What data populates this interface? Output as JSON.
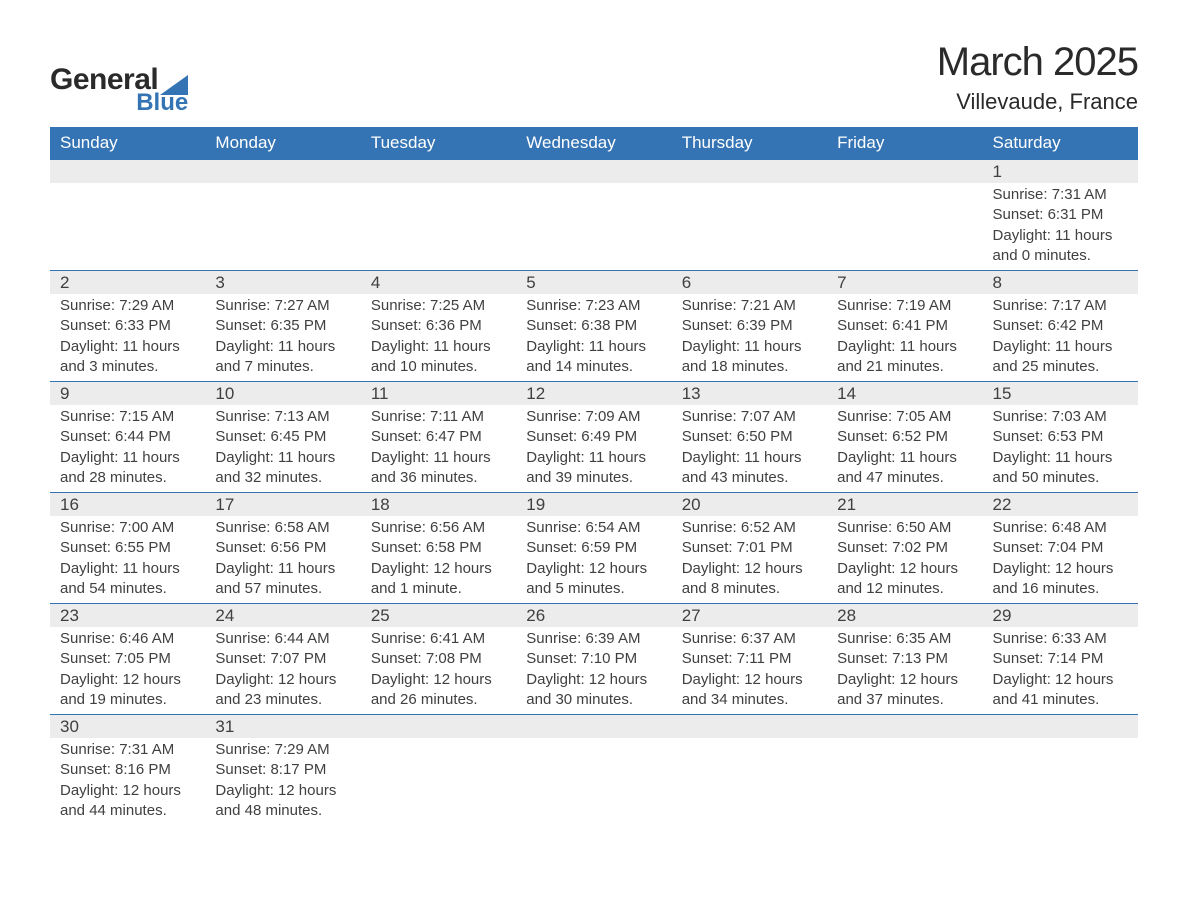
{
  "logo": {
    "text1": "General",
    "text2": "Blue",
    "tri_color": "#3474b4"
  },
  "title": {
    "month": "March 2025",
    "location": "Villevaude, France"
  },
  "colors": {
    "header_bg": "#3474b4",
    "header_text": "#ffffff",
    "daynum_bg": "#ececec",
    "content_bg": "#ffffff",
    "border": "#3474b4",
    "text": "#404040"
  },
  "fonts": {
    "title_pt": 40,
    "location_pt": 22,
    "header_pt": 17,
    "body_pt": 15
  },
  "weekdays": [
    "Sunday",
    "Monday",
    "Tuesday",
    "Wednesday",
    "Thursday",
    "Friday",
    "Saturday"
  ],
  "weeks": [
    [
      null,
      null,
      null,
      null,
      null,
      null,
      {
        "n": "1",
        "sr": "Sunrise: 7:31 AM",
        "ss": "Sunset: 6:31 PM",
        "d1": "Daylight: 11 hours",
        "d2": "and 0 minutes."
      }
    ],
    [
      {
        "n": "2",
        "sr": "Sunrise: 7:29 AM",
        "ss": "Sunset: 6:33 PM",
        "d1": "Daylight: 11 hours",
        "d2": "and 3 minutes."
      },
      {
        "n": "3",
        "sr": "Sunrise: 7:27 AM",
        "ss": "Sunset: 6:35 PM",
        "d1": "Daylight: 11 hours",
        "d2": "and 7 minutes."
      },
      {
        "n": "4",
        "sr": "Sunrise: 7:25 AM",
        "ss": "Sunset: 6:36 PM",
        "d1": "Daylight: 11 hours",
        "d2": "and 10 minutes."
      },
      {
        "n": "5",
        "sr": "Sunrise: 7:23 AM",
        "ss": "Sunset: 6:38 PM",
        "d1": "Daylight: 11 hours",
        "d2": "and 14 minutes."
      },
      {
        "n": "6",
        "sr": "Sunrise: 7:21 AM",
        "ss": "Sunset: 6:39 PM",
        "d1": "Daylight: 11 hours",
        "d2": "and 18 minutes."
      },
      {
        "n": "7",
        "sr": "Sunrise: 7:19 AM",
        "ss": "Sunset: 6:41 PM",
        "d1": "Daylight: 11 hours",
        "d2": "and 21 minutes."
      },
      {
        "n": "8",
        "sr": "Sunrise: 7:17 AM",
        "ss": "Sunset: 6:42 PM",
        "d1": "Daylight: 11 hours",
        "d2": "and 25 minutes."
      }
    ],
    [
      {
        "n": "9",
        "sr": "Sunrise: 7:15 AM",
        "ss": "Sunset: 6:44 PM",
        "d1": "Daylight: 11 hours",
        "d2": "and 28 minutes."
      },
      {
        "n": "10",
        "sr": "Sunrise: 7:13 AM",
        "ss": "Sunset: 6:45 PM",
        "d1": "Daylight: 11 hours",
        "d2": "and 32 minutes."
      },
      {
        "n": "11",
        "sr": "Sunrise: 7:11 AM",
        "ss": "Sunset: 6:47 PM",
        "d1": "Daylight: 11 hours",
        "d2": "and 36 minutes."
      },
      {
        "n": "12",
        "sr": "Sunrise: 7:09 AM",
        "ss": "Sunset: 6:49 PM",
        "d1": "Daylight: 11 hours",
        "d2": "and 39 minutes."
      },
      {
        "n": "13",
        "sr": "Sunrise: 7:07 AM",
        "ss": "Sunset: 6:50 PM",
        "d1": "Daylight: 11 hours",
        "d2": "and 43 minutes."
      },
      {
        "n": "14",
        "sr": "Sunrise: 7:05 AM",
        "ss": "Sunset: 6:52 PM",
        "d1": "Daylight: 11 hours",
        "d2": "and 47 minutes."
      },
      {
        "n": "15",
        "sr": "Sunrise: 7:03 AM",
        "ss": "Sunset: 6:53 PM",
        "d1": "Daylight: 11 hours",
        "d2": "and 50 minutes."
      }
    ],
    [
      {
        "n": "16",
        "sr": "Sunrise: 7:00 AM",
        "ss": "Sunset: 6:55 PM",
        "d1": "Daylight: 11 hours",
        "d2": "and 54 minutes."
      },
      {
        "n": "17",
        "sr": "Sunrise: 6:58 AM",
        "ss": "Sunset: 6:56 PM",
        "d1": "Daylight: 11 hours",
        "d2": "and 57 minutes."
      },
      {
        "n": "18",
        "sr": "Sunrise: 6:56 AM",
        "ss": "Sunset: 6:58 PM",
        "d1": "Daylight: 12 hours",
        "d2": "and 1 minute."
      },
      {
        "n": "19",
        "sr": "Sunrise: 6:54 AM",
        "ss": "Sunset: 6:59 PM",
        "d1": "Daylight: 12 hours",
        "d2": "and 5 minutes."
      },
      {
        "n": "20",
        "sr": "Sunrise: 6:52 AM",
        "ss": "Sunset: 7:01 PM",
        "d1": "Daylight: 12 hours",
        "d2": "and 8 minutes."
      },
      {
        "n": "21",
        "sr": "Sunrise: 6:50 AM",
        "ss": "Sunset: 7:02 PM",
        "d1": "Daylight: 12 hours",
        "d2": "and 12 minutes."
      },
      {
        "n": "22",
        "sr": "Sunrise: 6:48 AM",
        "ss": "Sunset: 7:04 PM",
        "d1": "Daylight: 12 hours",
        "d2": "and 16 minutes."
      }
    ],
    [
      {
        "n": "23",
        "sr": "Sunrise: 6:46 AM",
        "ss": "Sunset: 7:05 PM",
        "d1": "Daylight: 12 hours",
        "d2": "and 19 minutes."
      },
      {
        "n": "24",
        "sr": "Sunrise: 6:44 AM",
        "ss": "Sunset: 7:07 PM",
        "d1": "Daylight: 12 hours",
        "d2": "and 23 minutes."
      },
      {
        "n": "25",
        "sr": "Sunrise: 6:41 AM",
        "ss": "Sunset: 7:08 PM",
        "d1": "Daylight: 12 hours",
        "d2": "and 26 minutes."
      },
      {
        "n": "26",
        "sr": "Sunrise: 6:39 AM",
        "ss": "Sunset: 7:10 PM",
        "d1": "Daylight: 12 hours",
        "d2": "and 30 minutes."
      },
      {
        "n": "27",
        "sr": "Sunrise: 6:37 AM",
        "ss": "Sunset: 7:11 PM",
        "d1": "Daylight: 12 hours",
        "d2": "and 34 minutes."
      },
      {
        "n": "28",
        "sr": "Sunrise: 6:35 AM",
        "ss": "Sunset: 7:13 PM",
        "d1": "Daylight: 12 hours",
        "d2": "and 37 minutes."
      },
      {
        "n": "29",
        "sr": "Sunrise: 6:33 AM",
        "ss": "Sunset: 7:14 PM",
        "d1": "Daylight: 12 hours",
        "d2": "and 41 minutes."
      }
    ],
    [
      {
        "n": "30",
        "sr": "Sunrise: 7:31 AM",
        "ss": "Sunset: 8:16 PM",
        "d1": "Daylight: 12 hours",
        "d2": "and 44 minutes."
      },
      {
        "n": "31",
        "sr": "Sunrise: 7:29 AM",
        "ss": "Sunset: 8:17 PM",
        "d1": "Daylight: 12 hours",
        "d2": "and 48 minutes."
      },
      null,
      null,
      null,
      null,
      null
    ]
  ]
}
